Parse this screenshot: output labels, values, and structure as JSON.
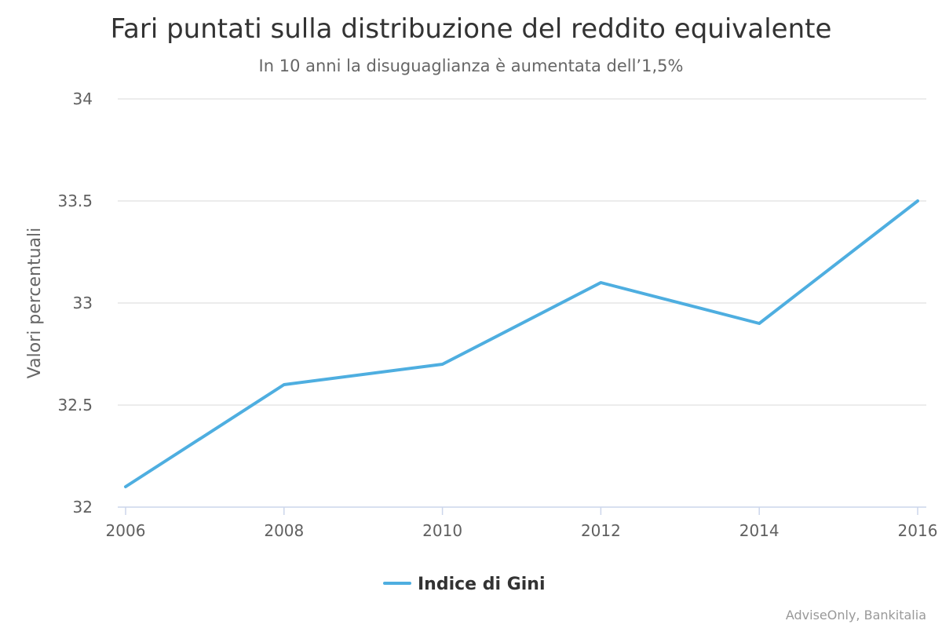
{
  "chart_data": {
    "type": "line",
    "title": "Fari puntati sulla distribuzione del reddito equivalente",
    "subtitle": "In 10 anni la disuguaglianza è aumentata dell’1,5%",
    "xlabel": "",
    "ylabel": "Valori percentuali",
    "x": [
      2006,
      2008,
      2010,
      2012,
      2014,
      2016
    ],
    "x_tick_labels": [
      "2006",
      "2008",
      "2010",
      "2012",
      "2014",
      "2016"
    ],
    "y_ticks": [
      32,
      32.5,
      33,
      33.5,
      34
    ],
    "y_tick_labels": [
      "32",
      "32.5",
      "33",
      "33.5",
      "34"
    ],
    "ylim": [
      32,
      34
    ],
    "xlim": [
      2006,
      2016
    ],
    "grid": true,
    "legend_position": "bottom-center",
    "series": [
      {
        "name": "Indice di Gini",
        "color": "#4eaee0",
        "values": [
          32.1,
          32.6,
          32.7,
          33.1,
          32.9,
          33.5
        ]
      }
    ],
    "credits": "AdviseOnly, Bankitalia"
  }
}
